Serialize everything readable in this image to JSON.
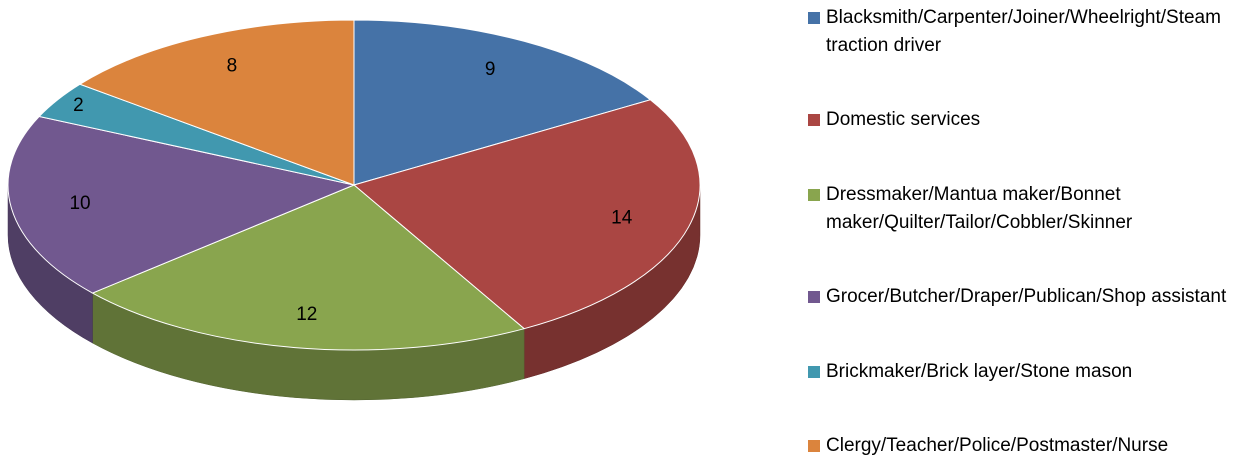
{
  "chart_data": {
    "type": "pie",
    "categories": [
      "Blacksmith/Carpenter/Joiner/Wheelright/Steam traction driver",
      "Domestic services",
      "Dressmaker/Mantua maker/Bonnet maker/Quilter/Tailor/Cobbler/Skinner",
      "Grocer/Butcher/Draper/Publican/Shop assistant",
      "Brickmaker/Brick layer/Stone mason",
      "Clergy/Teacher/Police/Postmaster/Nurse"
    ],
    "values": [
      9,
      14,
      12,
      10,
      2,
      8
    ],
    "colors": [
      "#4572A7",
      "#AA4643",
      "#89A54E",
      "#71588F",
      "#4198AF",
      "#DB843D"
    ],
    "legend": "right"
  }
}
